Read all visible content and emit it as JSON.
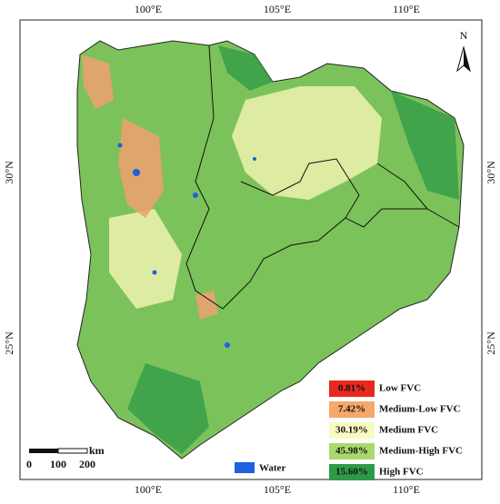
{
  "axes": {
    "top": [
      "100°E",
      "105°E",
      "110°E"
    ],
    "bottom": [
      "100°E",
      "105°E",
      "110°E"
    ],
    "left": [
      "30°N",
      "25°N"
    ],
    "right": [
      "30°N",
      "25°N"
    ]
  },
  "north": "N",
  "scale": {
    "ticks": [
      "0",
      "100",
      "200"
    ],
    "unit": "km"
  },
  "legend": [
    {
      "percent": "0.81%",
      "label": "Low FVC",
      "color": "#e8291f"
    },
    {
      "percent": "7.42%",
      "label": "Medium-Low FVC",
      "color": "#f5a86a"
    },
    {
      "percent": "30.19%",
      "label": "Medium FVC",
      "color": "#fafac0"
    },
    {
      "percent": "45.98%",
      "label": "Medium-High FVC",
      "color": "#a8d96e"
    },
    {
      "percent": "15.60%",
      "label": "High FVC",
      "color": "#2e9a45"
    }
  ],
  "water": {
    "label": "Water",
    "color": "#1f5fe0"
  }
}
